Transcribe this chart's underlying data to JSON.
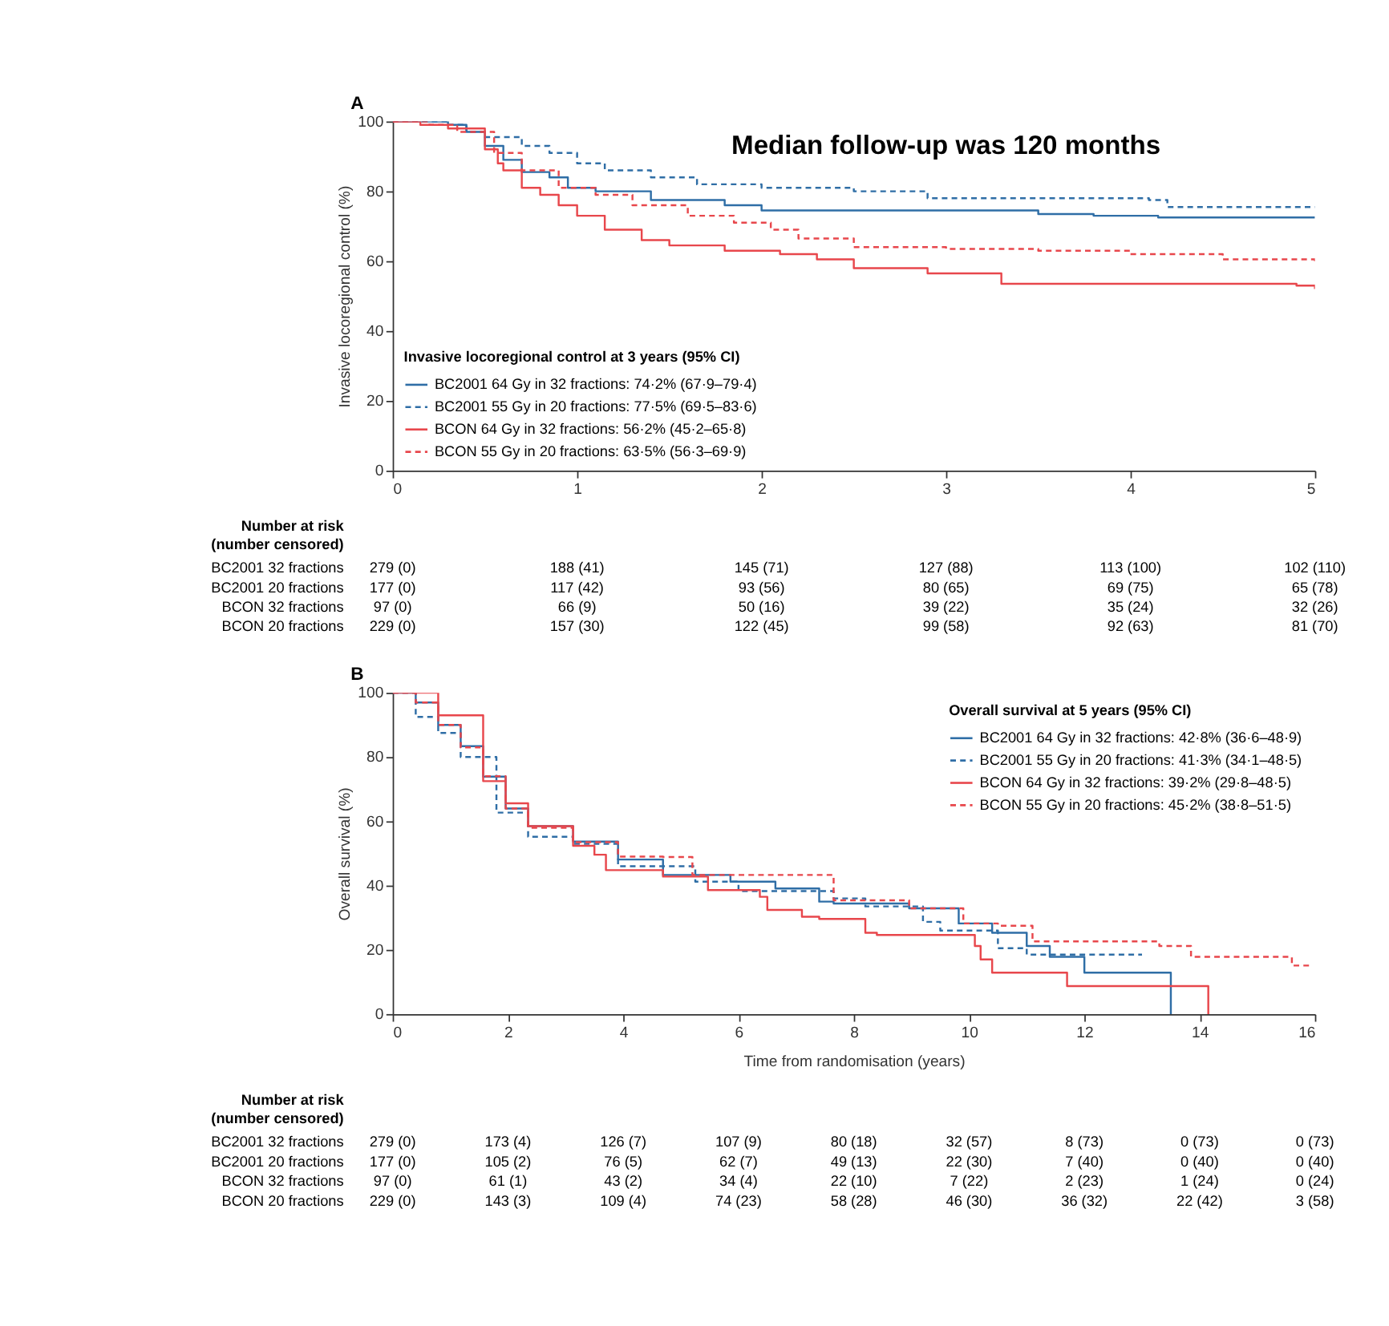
{
  "chart_data": [
    {
      "type": "step",
      "title": "A",
      "ylabel": "Invasive locoregional control (%)",
      "legend_title": "Invasive locoregional control at 3 years (95% CI)",
      "legend": "bottom left",
      "grid": false,
      "xlim": [
        0,
        5
      ],
      "ylim": [
        0,
        100
      ],
      "xticks": [
        0,
        1,
        2,
        3,
        4,
        5
      ],
      "yticks": [
        0,
        20,
        40,
        60,
        80,
        100
      ],
      "series": [
        {
          "name": "BC2001 64 Gy in 32 fractions: 74·2% (67·9–79·4)",
          "color": "#2f6ea6",
          "type": "step",
          "line_style": "solid",
          "x": [
            0,
            0.3,
            0.4,
            0.5,
            0.6,
            0.7,
            0.85,
            0.95,
            1.1,
            1.4,
            1.8,
            2.0,
            3.5,
            3.8,
            4.15,
            5
          ],
          "values": [
            100,
            99,
            97,
            93,
            89,
            85.5,
            84,
            81,
            80,
            77.5,
            76,
            74.5,
            73.5,
            73,
            72.5,
            72.5
          ]
        },
        {
          "name": "BC2001 55 Gy in 20 fractions: 77·5% (69·5–83·6)",
          "color": "#2f6ea6",
          "type": "step",
          "line_style": "dashed",
          "x": [
            0,
            0.3,
            0.4,
            0.5,
            0.7,
            0.85,
            1.0,
            1.15,
            1.4,
            1.65,
            2.0,
            2.5,
            2.9,
            4.1,
            4.2,
            5
          ],
          "values": [
            100,
            99,
            97,
            95.5,
            93,
            91,
            88,
            86,
            84,
            82,
            81,
            80,
            78,
            77.5,
            75.5,
            75.5
          ]
        },
        {
          "name": "BCON 64 Gy in 32 fractions: 56·2% (45·2–65·8)",
          "color": "#e8474c",
          "type": "step",
          "line_style": "solid",
          "x": [
            0,
            0.15,
            0.3,
            0.5,
            0.57,
            0.6,
            0.7,
            0.8,
            0.9,
            1.0,
            1.15,
            1.35,
            1.5,
            1.8,
            2.1,
            2.3,
            2.5,
            2.9,
            3.3,
            4.9,
            5
          ],
          "values": [
            100,
            99,
            98,
            92,
            88,
            86,
            81,
            79,
            76,
            73,
            69,
            66,
            64.5,
            63,
            62,
            60.5,
            58,
            56.5,
            53.5,
            53,
            52
          ]
        },
        {
          "name": "BCON 55 Gy in 20 fractions: 63·5% (56·3–69·9)",
          "color": "#e8474c",
          "type": "step",
          "line_style": "dashed",
          "x": [
            0,
            0.2,
            0.35,
            0.55,
            0.7,
            0.9,
            1.1,
            1.3,
            1.6,
            1.85,
            2.05,
            2.2,
            2.5,
            3.0,
            3.5,
            4.0,
            4.5,
            5
          ],
          "values": [
            100,
            99,
            97,
            91,
            86,
            81,
            79,
            76,
            73,
            71,
            69,
            66.5,
            64,
            63.5,
            63,
            62,
            60.5,
            59.5
          ]
        }
      ],
      "annotations": [
        "Median follow-up was 120 months",
        "Number at risk",
        "(number censored)",
        "BC2001 32 fractions",
        "279 (0)",
        "188 (41)",
        "145 (71)",
        "127 (88)",
        "113 (100)",
        "102 (110)",
        "BC2001 20 fractions",
        "177 (0)",
        "117 (42)",
        "93 (56)",
        "80 (65)",
        "69 (75)",
        "65 (78)",
        "BCON 32 fractions",
        "97 (0)",
        "66 (9)",
        "50 (16)",
        "39 (22)",
        "35 (24)",
        "32 (26)",
        "BCON 20 fractions",
        "229 (0)",
        "157 (30)",
        "122 (45)",
        "99 (58)",
        "92 (63)",
        "81 (70)"
      ]
    },
    {
      "type": "step",
      "title": "B",
      "xlabel": "Time from randomisation (years)",
      "ylabel": "Overall survival (%)",
      "legend_title": "Overall survival at 5 years (95% CI)",
      "legend": "top right",
      "grid": false,
      "xlim": [
        0,
        16
      ],
      "ylim": [
        0,
        100
      ],
      "xticks": [
        0,
        2,
        4,
        6,
        8,
        10,
        12,
        14,
        16
      ],
      "yticks": [
        0,
        20,
        40,
        60,
        80,
        100
      ],
      "series": [
        {
          "name": "BC2001 64 Gy in 32 fractions: 42·8% (36·6–48·9)",
          "color": "#2f6ea6",
          "type": "step",
          "line_style": "solid",
          "x": [
            0,
            0.4,
            0.79,
            1.18,
            1.57,
            1.96,
            2.35,
            3.13,
            3.91,
            4.69,
            5.86,
            6.64,
            7.4,
            7.65,
            8.96,
            9.82,
            10.4,
            11.0,
            11.4,
            12.0,
            13.5
          ],
          "values": [
            100,
            97,
            90,
            83.4,
            73.9,
            64,
            58.5,
            53.7,
            48.1,
            43.3,
            41.2,
            39.1,
            35,
            34.4,
            32.9,
            28.2,
            25.3,
            21.2,
            17.8,
            12.9,
            0
          ]
        },
        {
          "name": "BC2001 55 Gy in 20 fractions: 41·3% (34·1–48·5)",
          "color": "#2f6ea6",
          "type": "step",
          "line_style": "dashed",
          "x": [
            0,
            0.4,
            0.79,
            1.18,
            1.8,
            2.35,
            3.13,
            3.91,
            5.25,
            6.0,
            7.65,
            8.2,
            9.2,
            9.5,
            10.5,
            11.0,
            13.0
          ],
          "values": [
            100,
            92.5,
            87.5,
            80,
            62.7,
            55.2,
            53,
            46,
            41.2,
            38.3,
            36,
            33.5,
            28.7,
            26,
            20.5,
            18.5,
            18.5
          ]
        },
        {
          "name": "BCON 64 Gy in 32 fractions: 39·2% (29·8–48·5)",
          "color": "#e8474c",
          "type": "step",
          "line_style": "solid",
          "x": [
            0,
            0.25,
            0.79,
            1.57,
            1.96,
            2.35,
            3.13,
            3.5,
            3.7,
            4.69,
            5.47,
            6.37,
            6.5,
            7.1,
            7.4,
            8.2,
            8.4,
            10.1,
            10.2,
            10.4,
            11.7,
            14.15
          ],
          "values": [
            100,
            100,
            93,
            72.5,
            65.6,
            58.5,
            52.4,
            49.6,
            44.8,
            42.8,
            38.6,
            36.5,
            32.4,
            30.3,
            29.6,
            25.3,
            24.6,
            21.2,
            17,
            12.9,
            8.7,
            0
          ]
        },
        {
          "name": "BCON 55 Gy in 20 fractions: 45·2% (38·8–51·5)",
          "color": "#e8474c",
          "type": "step",
          "line_style": "dashed",
          "x": [
            0,
            0.4,
            0.79,
            1.18,
            1.57,
            1.96,
            2.35,
            3.13,
            3.91,
            4.69,
            5.2,
            7.65,
            8.96,
            9.9,
            10.5,
            11.1,
            13.3,
            13.85,
            15.6,
            15.9
          ],
          "values": [
            100,
            97,
            90,
            83,
            74,
            64,
            58,
            53.5,
            49,
            48.9,
            43.3,
            35.4,
            32.9,
            28.2,
            27.5,
            22.6,
            21.2,
            17.8,
            15.1,
            15.1
          ]
        }
      ],
      "annotations": [
        "Number at risk",
        "(number censored)",
        "BC2001 32 fractions",
        "279 (0)",
        "173 (4)",
        "126 (7)",
        "107 (9)",
        "80 (18)",
        "32 (57)",
        "8 (73)",
        "0 (73)",
        "0 (73)",
        "BC2001 20 fractions",
        "177 (0)",
        "105 (2)",
        "76 (5)",
        "62 (7)",
        "49 (13)",
        "22 (30)",
        "7 (40)",
        "0 (40)",
        "0 (40)",
        "BCON 32 fractions",
        "97 (0)",
        "61 (1)",
        "43 (2)",
        "34 (4)",
        "22 (10)",
        "7 (22)",
        "2 (23)",
        "1 (24)",
        "0 (24)",
        "BCON 20 fractions",
        "229 (0)",
        "143 (3)",
        "109 (4)",
        "74 (23)",
        "58 (28)",
        "46 (30)",
        "36 (32)",
        "22 (42)",
        "3 (58)"
      ]
    }
  ]
}
